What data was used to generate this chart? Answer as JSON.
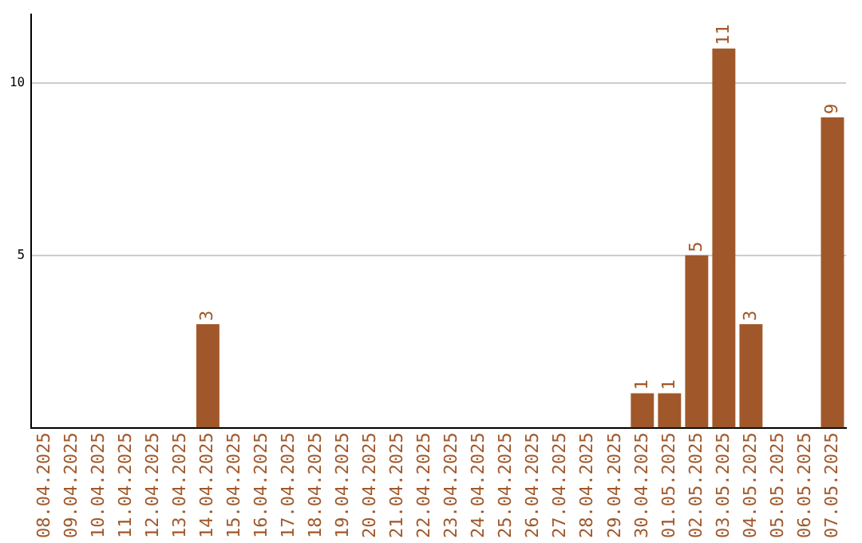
{
  "chart_data": {
    "type": "bar",
    "categories": [
      "08.04.2025",
      "09.04.2025",
      "10.04.2025",
      "11.04.2025",
      "12.04.2025",
      "13.04.2025",
      "14.04.2025",
      "15.04.2025",
      "16.04.2025",
      "17.04.2025",
      "18.04.2025",
      "19.04.2025",
      "20.04.2025",
      "21.04.2025",
      "22.04.2025",
      "23.04.2025",
      "24.04.2025",
      "25.04.2025",
      "26.04.2025",
      "27.04.2025",
      "28.04.2025",
      "29.04.2025",
      "30.04.2025",
      "01.05.2025",
      "02.05.2025",
      "03.05.2025",
      "04.05.2025",
      "05.05.2025",
      "06.05.2025",
      "07.05.2025"
    ],
    "values": [
      0,
      0,
      0,
      0,
      0,
      0,
      3,
      0,
      0,
      0,
      0,
      0,
      0,
      0,
      0,
      0,
      0,
      0,
      0,
      0,
      0,
      0,
      1,
      1,
      5,
      11,
      3,
      0,
      0,
      9
    ],
    "value_labels": [
      null,
      null,
      null,
      null,
      null,
      null,
      "3",
      null,
      null,
      null,
      null,
      null,
      null,
      null,
      null,
      null,
      null,
      null,
      null,
      null,
      null,
      null,
      "1",
      "1",
      "5",
      "11",
      "3",
      null,
      null,
      "9"
    ],
    "color": "#a0582a",
    "ylim": [
      0,
      12
    ],
    "yticks": [
      5,
      10
    ],
    "grid": "y",
    "legend": false
  }
}
